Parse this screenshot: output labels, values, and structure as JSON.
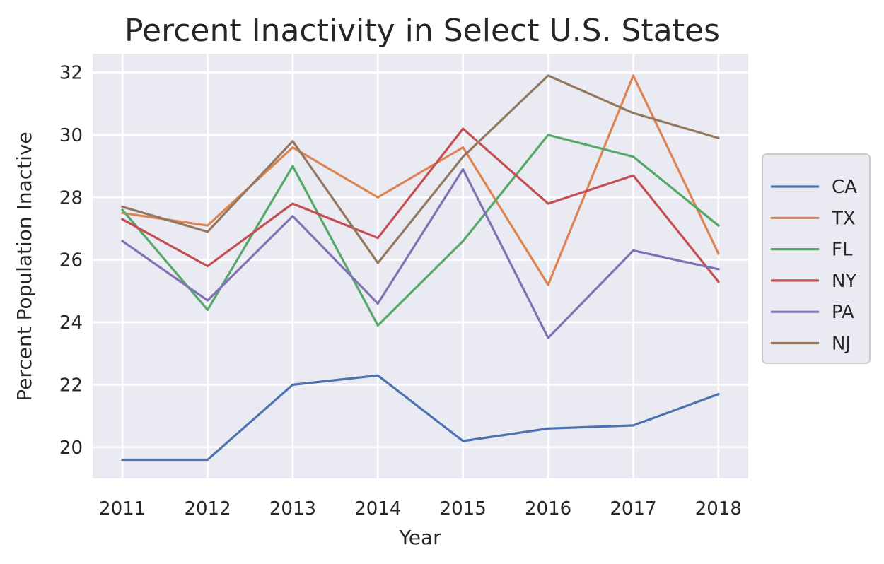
{
  "chart_data": {
    "type": "line",
    "title": "Percent Inactivity in Select U.S. States",
    "xlabel": "Year",
    "ylabel": "Percent Population Inactive",
    "x": [
      2011,
      2012,
      2013,
      2014,
      2015,
      2016,
      2017,
      2018
    ],
    "xticks": [
      "2011",
      "2012",
      "2013",
      "2014",
      "2015",
      "2016",
      "2017",
      "2018"
    ],
    "yticks": [
      "20",
      "22",
      "24",
      "26",
      "28",
      "30",
      "32"
    ],
    "ylim": [
      19,
      32.6
    ],
    "xlim": [
      2010.65,
      2018.35
    ],
    "grid": true,
    "legend_position": "center-right outside",
    "background": "#eaeaf2",
    "series": [
      {
        "name": "CA",
        "color": "#4c72b0",
        "values": [
          19.6,
          19.6,
          22.0,
          22.3,
          20.2,
          20.6,
          20.7,
          21.7
        ]
      },
      {
        "name": "TX",
        "color": "#dd8452",
        "values": [
          27.5,
          27.1,
          29.6,
          28.0,
          29.6,
          25.2,
          31.9,
          26.2
        ]
      },
      {
        "name": "FL",
        "color": "#55a868",
        "values": [
          27.6,
          24.4,
          29.0,
          23.9,
          26.6,
          30.0,
          29.3,
          27.1
        ]
      },
      {
        "name": "NY",
        "color": "#c44e52",
        "values": [
          27.3,
          25.8,
          27.8,
          26.7,
          30.2,
          27.8,
          28.7,
          25.3
        ]
      },
      {
        "name": "PA",
        "color": "#8172b3",
        "values": [
          26.6,
          24.7,
          27.4,
          24.6,
          28.9,
          23.5,
          26.3,
          25.7
        ]
      },
      {
        "name": "NJ",
        "color": "#937860",
        "values": [
          27.7,
          26.9,
          29.8,
          25.9,
          29.3,
          31.9,
          30.7,
          29.9
        ]
      }
    ]
  }
}
